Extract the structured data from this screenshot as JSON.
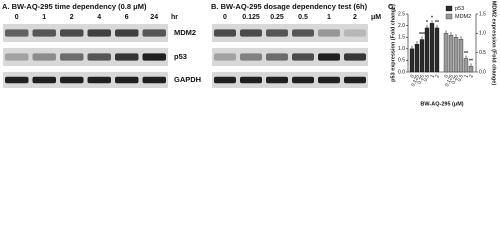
{
  "panel_a": {
    "title": "A. BW-AQ-295 time dependency (0.8 μM)",
    "lanes": [
      "0",
      "1",
      "2",
      "4",
      "6",
      "24"
    ],
    "unit": "hr"
  },
  "panel_b": {
    "title": "B. BW-AQ-295 dosage dependency test (6h)",
    "lanes": [
      "0",
      "0.125",
      "0.25",
      "0.5",
      "1",
      "2"
    ],
    "unit": "μM"
  },
  "proteins": [
    "MDM2",
    "p53",
    "GAPDH"
  ],
  "chart_data": {
    "type": "bar",
    "panel_label": "C.",
    "categories": [
      "0",
      "0.125",
      "0.25",
      "0.5",
      "1",
      "2"
    ],
    "xlabel": "BW-AQ-295 (μM)",
    "ylabel": "p53 expression (Fold change)",
    "y2label": "MDM2 expression (Fold change)",
    "ylim": [
      0,
      2.5
    ],
    "yticks": [
      {
        "value": 0,
        "label": "0.0"
      },
      0.5,
      {
        "value": 1,
        "label": "1.0"
      },
      1.5,
      {
        "value": 2,
        "label": "2.0"
      },
      2.5
    ],
    "y2lim": [
      0,
      1.5
    ],
    "y2ticks": [
      {
        "value": 0,
        "label": "0.0"
      },
      0.5,
      {
        "value": 1,
        "label": "1.0"
      },
      1.5
    ],
    "series": [
      {
        "name": "p53",
        "color": "#2b2b2b",
        "values": [
          1.0,
          1.2,
          1.4,
          1.9,
          2.1,
          1.9
        ],
        "significance": [
          null,
          null,
          "***",
          "*",
          "*",
          "**"
        ]
      },
      {
        "name": "MDM2",
        "color": "#9a9a9a",
        "axis": "y2",
        "values": [
          1.0,
          0.95,
          0.9,
          0.85,
          0.35,
          0.15
        ],
        "significance": [
          null,
          null,
          null,
          null,
          "**",
          "**"
        ]
      }
    ]
  }
}
